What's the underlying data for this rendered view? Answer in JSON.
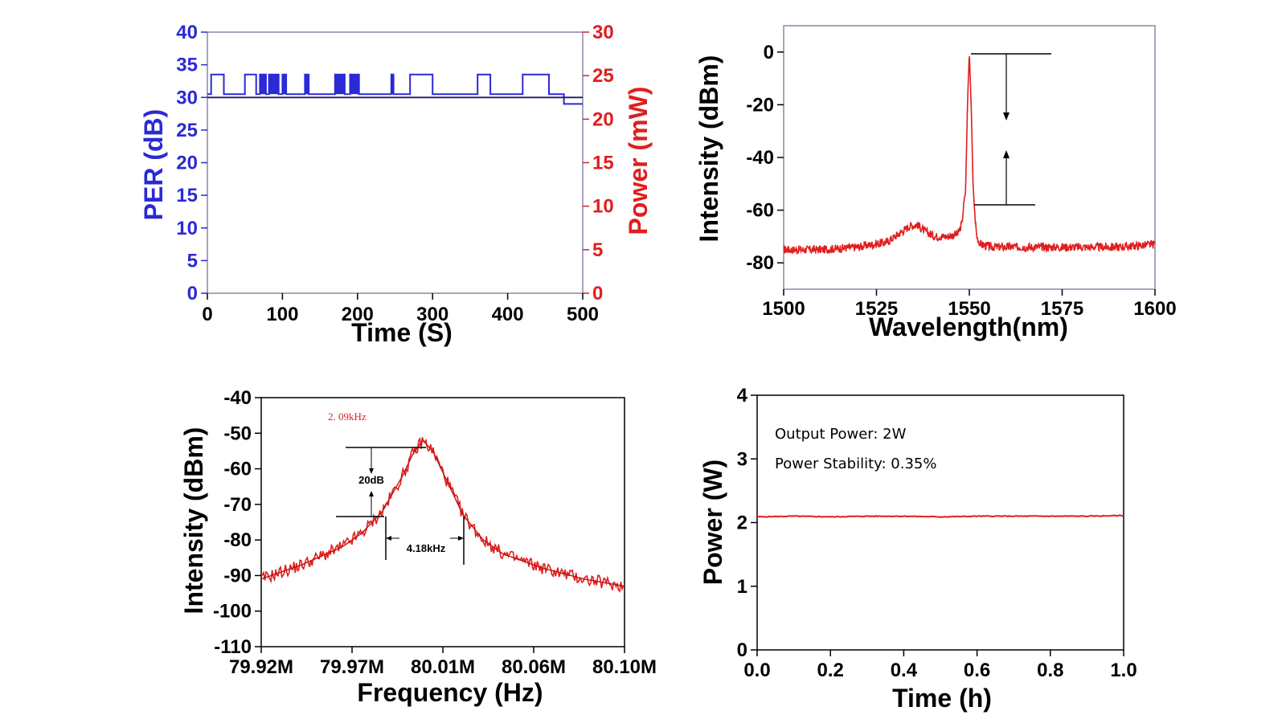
{
  "colors": {
    "blue": "#2a2ad6",
    "navy": "#1a1a6e",
    "red": "#e01e1e",
    "black": "#000000"
  },
  "chart_data": [
    {
      "id": "per",
      "type": "line",
      "title": "",
      "xlabel": "Time (S)",
      "ylabel": "PER (dB)",
      "y2label": "Power (mW)",
      "xlim": [
        0,
        500
      ],
      "ylim": [
        0,
        40
      ],
      "y2lim": [
        0,
        30
      ],
      "x_ticks": [
        "0",
        "100",
        "200",
        "300",
        "400",
        "500"
      ],
      "y_ticks": [
        "0",
        "5",
        "10",
        "15",
        "20",
        "25",
        "30",
        "35",
        "40"
      ],
      "y2_ticks": [
        "0",
        "5",
        "10",
        "15",
        "20",
        "25",
        "30"
      ],
      "series": [
        {
          "axis": "left",
          "x": [
            0,
            5,
            5,
            22,
            22,
            50,
            50,
            65,
            65,
            70,
            70,
            78,
            78,
            82,
            82,
            95,
            95,
            100,
            100,
            105,
            105,
            130,
            130,
            135,
            135,
            170,
            170,
            183,
            183,
            190,
            190,
            202,
            202,
            245,
            245,
            248,
            248,
            270,
            270,
            300,
            300,
            360,
            360,
            377,
            377,
            420,
            420,
            455,
            455,
            475,
            475,
            500
          ],
          "values": [
            30.5,
            30.5,
            33.5,
            33.5,
            30.5,
            30.5,
            33.5,
            33.5,
            30.5,
            30.5,
            33.5,
            33.5,
            30.5,
            30.5,
            33.5,
            33.5,
            30.5,
            30.5,
            33.5,
            33.5,
            30.5,
            30.5,
            33.5,
            33.5,
            30.5,
            30.5,
            33.5,
            33.5,
            30.5,
            30.5,
            33.5,
            33.5,
            30.5,
            30.5,
            33.5,
            33.5,
            30.5,
            30.5,
            33.5,
            33.5,
            30.5,
            30.5,
            33.5,
            33.5,
            30.5,
            30.5,
            33.5,
            33.5,
            30.5,
            30.5,
            29,
            29
          ]
        },
        {
          "axis": "right",
          "x": [
            0,
            500
          ],
          "values": [
            22.5,
            22.5
          ]
        }
      ]
    },
    {
      "id": "spectrum",
      "type": "line",
      "title": "",
      "xlabel": "Wavelength(nm)",
      "ylabel": "Intensity (dBm)",
      "xlim": [
        1500,
        1600
      ],
      "ylim": [
        -90,
        10
      ],
      "x_ticks": [
        "1500",
        "1525",
        "1550",
        "1575",
        "1600"
      ],
      "y_ticks": [
        "0",
        "-20",
        "-40",
        "-60",
        "-80"
      ],
      "series": [
        {
          "x": [
            1500,
            1510,
            1520,
            1528,
            1532,
            1534,
            1536,
            1538,
            1541,
            1544,
            1547,
            1548,
            1548.5,
            1549,
            1549.5,
            1550,
            1550.5,
            1551,
            1551.5,
            1552,
            1553,
            1556,
            1565,
            1580,
            1590,
            1600
          ],
          "values": [
            -75,
            -75,
            -74,
            -72,
            -68,
            -66,
            -65.5,
            -68,
            -70,
            -70,
            -69,
            -65,
            -58,
            -53,
            -20,
            0,
            -20,
            -50,
            -62,
            -70,
            -73,
            -74,
            -74,
            -74,
            -74,
            -73
          ]
        }
      ]
    },
    {
      "id": "linewidth",
      "type": "line",
      "title": "",
      "xlabel": "Frequency (Hz)",
      "ylabel": "Intensity (dBm)",
      "xlim": [
        79.92,
        80.1
      ],
      "ylim": [
        -110,
        -40
      ],
      "x_ticks": [
        "79.92M",
        "79.97M",
        "80.01M",
        "80.06M",
        "80.10M"
      ],
      "y_ticks": [
        "-40",
        "-50",
        "-60",
        "-70",
        "-80",
        "-90",
        "-100",
        "-110"
      ],
      "annotations": {
        "linewidth_top": "2. 09kHz",
        "db_drop": "20dB",
        "width": "4.18kHz"
      },
      "series": [
        {
          "x": [
            79.92,
            79.94,
            79.96,
            79.97,
            79.98,
            79.99,
            79.995,
            80.0,
            80.005,
            80.01,
            80.02,
            80.03,
            80.04,
            80.06,
            80.08,
            80.1
          ],
          "values": [
            -91,
            -87,
            -82,
            -78,
            -72,
            -62,
            -56,
            -52,
            -55,
            -61,
            -73,
            -80,
            -84,
            -88,
            -91,
            -93
          ]
        }
      ]
    },
    {
      "id": "stability",
      "type": "line",
      "title": "",
      "xlabel": "Time (h)",
      "ylabel": "Power (W)",
      "xlim": [
        0,
        1
      ],
      "ylim": [
        0,
        4
      ],
      "x_ticks": [
        "0.0",
        "0.2",
        "0.4",
        "0.6",
        "0.8",
        "1.0"
      ],
      "y_ticks": [
        "0",
        "1",
        "2",
        "3",
        "4"
      ],
      "annotations": {
        "output": "Output Power: 2W",
        "stability": "Power Stability: 0.35%"
      },
      "series": [
        {
          "x": [
            0,
            0.1,
            0.2,
            0.3,
            0.4,
            0.5,
            0.6,
            0.7,
            0.8,
            0.9,
            1.0
          ],
          "values": [
            2.09,
            2.1,
            2.09,
            2.1,
            2.1,
            2.09,
            2.1,
            2.1,
            2.1,
            2.1,
            2.11
          ]
        }
      ]
    }
  ]
}
